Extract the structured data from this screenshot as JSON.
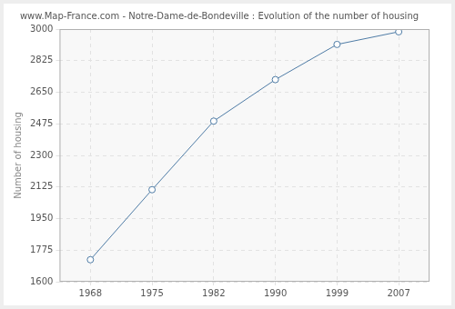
{
  "chart_data": {
    "type": "line",
    "title": "www.Map-France.com - Notre-Dame-de-Bondeville : Evolution of the number of housing",
    "y_label": "Number of housing",
    "categories": [
      "1968",
      "1975",
      "1982",
      "1990",
      "1999",
      "2007"
    ],
    "values": [
      1722,
      2110,
      2490,
      2720,
      2915,
      2985
    ],
    "color": "#4f7ca6",
    "marker": "circle",
    "ylim": [
      1600,
      3000
    ],
    "yticks": [
      1600,
      1775,
      1950,
      2125,
      2300,
      2475,
      2650,
      2825,
      3000
    ],
    "grid": true
  }
}
